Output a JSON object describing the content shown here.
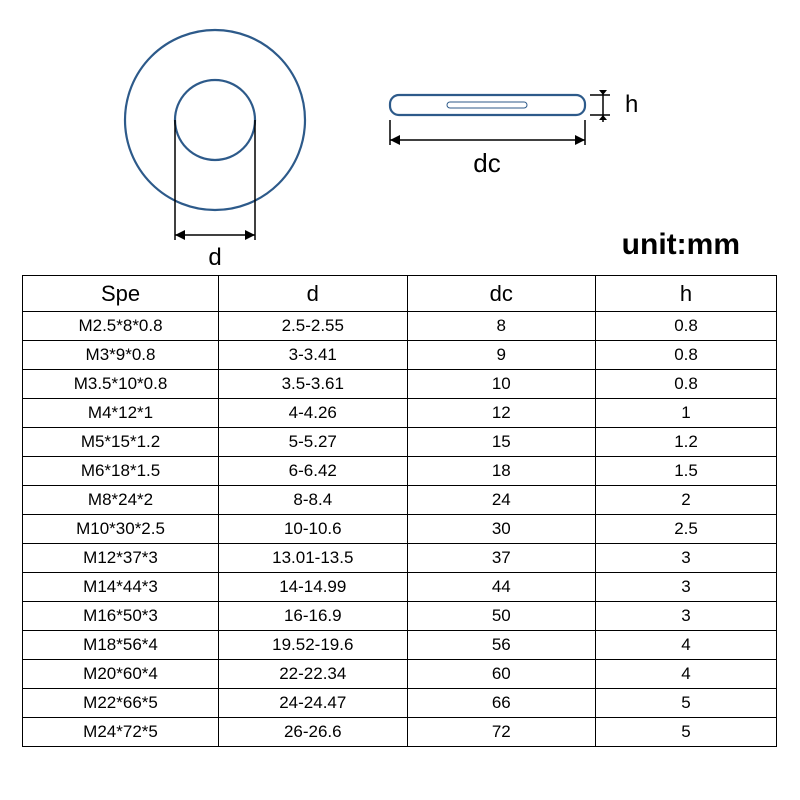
{
  "diagram": {
    "top_view": {
      "outer_radius": 90,
      "inner_radius": 40,
      "stroke_color": "#2d5a8a",
      "stroke_width": 2.2,
      "label_d": "d",
      "label_d_fontsize": 24,
      "dim_color": "#000000"
    },
    "side_view": {
      "width": 195,
      "height": 20,
      "radius": 9,
      "stroke_color": "#2d5a8a",
      "stroke_width": 2.2,
      "inner_line_color": "#2d5a8a",
      "label_h": "h",
      "label_h_fontsize": 24,
      "label_dc": "dc",
      "label_dc_fontsize": 26,
      "dim_color": "#000000"
    },
    "unit_label": "unit:mm",
    "unit_fontsize": 30
  },
  "table": {
    "columns": [
      "Spe",
      "d",
      "dc",
      "h"
    ],
    "column_widths_pct": [
      26,
      25,
      25,
      24
    ],
    "header_fontsize": 22,
    "cell_fontsize": 17,
    "border_color": "#000000",
    "background_color": "#ffffff",
    "text_color": "#000000",
    "rows": [
      [
        "M2.5*8*0.8",
        "2.5-2.55",
        "8",
        "0.8"
      ],
      [
        "M3*9*0.8",
        "3-3.41",
        "9",
        "0.8"
      ],
      [
        "M3.5*10*0.8",
        "3.5-3.61",
        "10",
        "0.8"
      ],
      [
        "M4*12*1",
        "4-4.26",
        "12",
        "1"
      ],
      [
        "M5*15*1.2",
        "5-5.27",
        "15",
        "1.2"
      ],
      [
        "M6*18*1.5",
        "6-6.42",
        "18",
        "1.5"
      ],
      [
        "M8*24*2",
        "8-8.4",
        "24",
        "2"
      ],
      [
        "M10*30*2.5",
        "10-10.6",
        "30",
        "2.5"
      ],
      [
        "M12*37*3",
        "13.01-13.5",
        "37",
        "3"
      ],
      [
        "M14*44*3",
        "14-14.99",
        "44",
        "3"
      ],
      [
        "M16*50*3",
        "16-16.9",
        "50",
        "3"
      ],
      [
        "M18*56*4",
        "19.52-19.6",
        "56",
        "4"
      ],
      [
        "M20*60*4",
        "22-22.34",
        "60",
        "4"
      ],
      [
        "M22*66*5",
        "24-24.47",
        "66",
        "5"
      ],
      [
        "M24*72*5",
        "26-26.6",
        "72",
        "5"
      ]
    ]
  }
}
